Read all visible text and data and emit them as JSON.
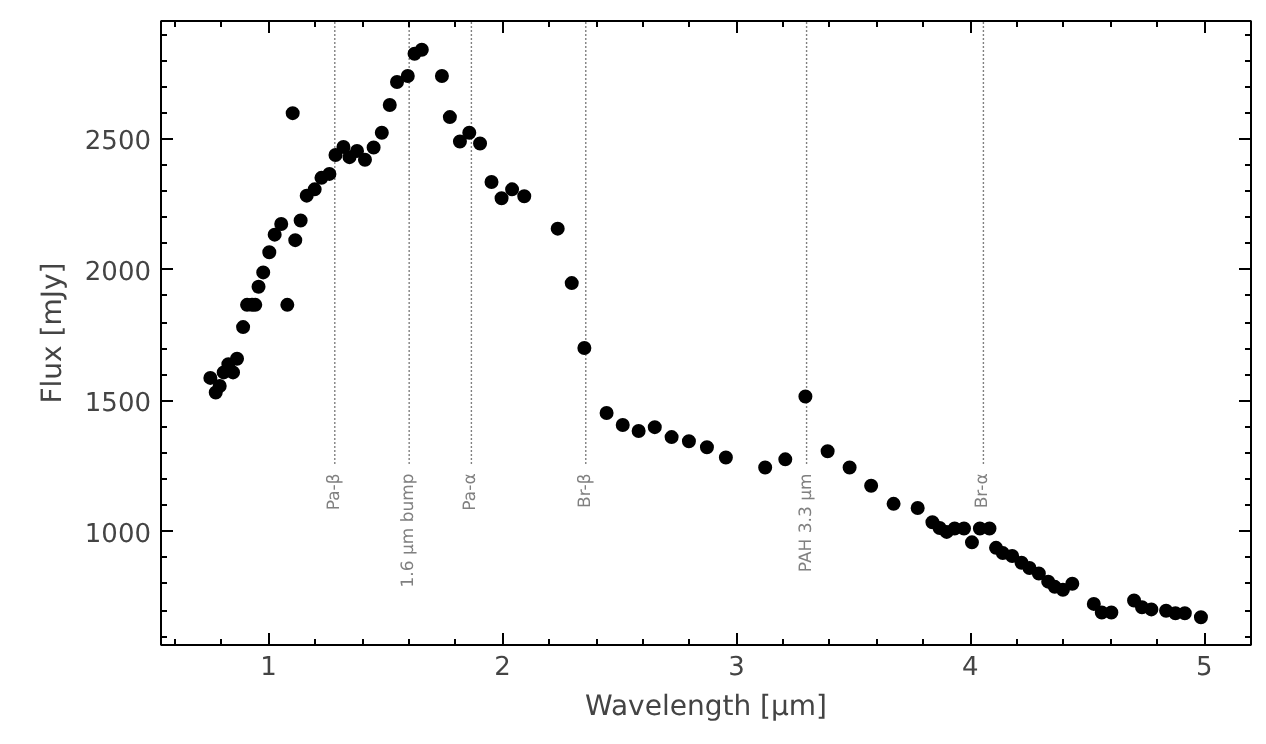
{
  "chart_data": {
    "type": "scatter",
    "xlabel": "Wavelength [μm]",
    "ylabel": "Flux [mJy]",
    "marker": "circle",
    "grid": false,
    "xlim": [
      0.54,
      5.2
    ],
    "ylim": [
      567,
      2950
    ],
    "xticks": [
      1,
      2,
      3,
      4,
      5
    ],
    "yticks": [
      1000,
      1500,
      2000,
      2500
    ],
    "series": [
      {
        "color": "#000000",
        "x": [
          0.751,
          0.774,
          0.791,
          0.808,
          0.828,
          0.848,
          0.865,
          0.891,
          0.908,
          0.929,
          0.943,
          0.957,
          0.977,
          1.003,
          1.026,
          1.054,
          1.08,
          1.103,
          1.114,
          1.137,
          1.163,
          1.197,
          1.226,
          1.26,
          1.286,
          1.32,
          1.346,
          1.378,
          1.412,
          1.449,
          1.484,
          1.518,
          1.549,
          1.595,
          1.624,
          1.655,
          1.741,
          1.775,
          1.818,
          1.858,
          1.904,
          1.953,
          1.996,
          2.041,
          2.093,
          2.236,
          2.296,
          2.35,
          2.445,
          2.514,
          2.582,
          2.651,
          2.723,
          2.797,
          2.874,
          2.955,
          3.123,
          3.209,
          3.295,
          3.39,
          3.484,
          3.576,
          3.672,
          3.775,
          3.838,
          3.869,
          3.899,
          3.933,
          3.973,
          4.007,
          4.041,
          4.082,
          4.11,
          4.139,
          4.179,
          4.219,
          4.253,
          4.293,
          4.333,
          4.361,
          4.396,
          4.436,
          4.528,
          4.562,
          4.603,
          4.7,
          4.734,
          4.774,
          4.837,
          4.877,
          4.917,
          4.986
        ],
        "values": [
          1587,
          1531,
          1556,
          1608,
          1639,
          1608,
          1660,
          1781,
          1866,
          1866,
          1866,
          1935,
          1990,
          2067,
          2134,
          2175,
          1866,
          2598,
          2113,
          2188,
          2283,
          2307,
          2351,
          2366,
          2438,
          2469,
          2430,
          2454,
          2420,
          2467,
          2523,
          2629,
          2717,
          2740,
          2825,
          2840,
          2740,
          2583,
          2490,
          2523,
          2482,
          2335,
          2273,
          2307,
          2281,
          2157,
          1949,
          1701,
          1453,
          1407,
          1384,
          1399,
          1361,
          1345,
          1322,
          1283,
          1245,
          1276,
          1516,
          1307,
          1245,
          1175,
          1106,
          1090,
          1036,
          1014,
          999,
          1012,
          1012,
          959,
          1012,
          1012,
          938,
          918,
          907,
          881,
          861,
          840,
          809,
          789,
          778,
          801,
          724,
          691,
          691,
          737,
          711,
          703,
          698,
          688,
          688,
          673
        ]
      }
    ],
    "ref_lines": [
      {
        "axis": "x",
        "value": 1.283,
        "label": "Pa-β",
        "color": "#808080",
        "line_style": "dotted"
      },
      {
        "axis": "x",
        "value": 1.601,
        "label": "1.6 μm bump",
        "color": "#808080",
        "line_style": "dotted"
      },
      {
        "axis": "x",
        "value": 1.867,
        "label": "Pa-α",
        "color": "#808080",
        "line_style": "dotted"
      },
      {
        "axis": "x",
        "value": 2.356,
        "label": "Br-β",
        "color": "#808080",
        "line_style": "dotted"
      },
      {
        "axis": "x",
        "value": 3.3,
        "label": "PAH 3.3 μm",
        "color": "#808080",
        "line_style": "dotted"
      },
      {
        "axis": "x",
        "value": 4.056,
        "label": "Br-α",
        "color": "#808080",
        "line_style": "dotted"
      }
    ]
  }
}
